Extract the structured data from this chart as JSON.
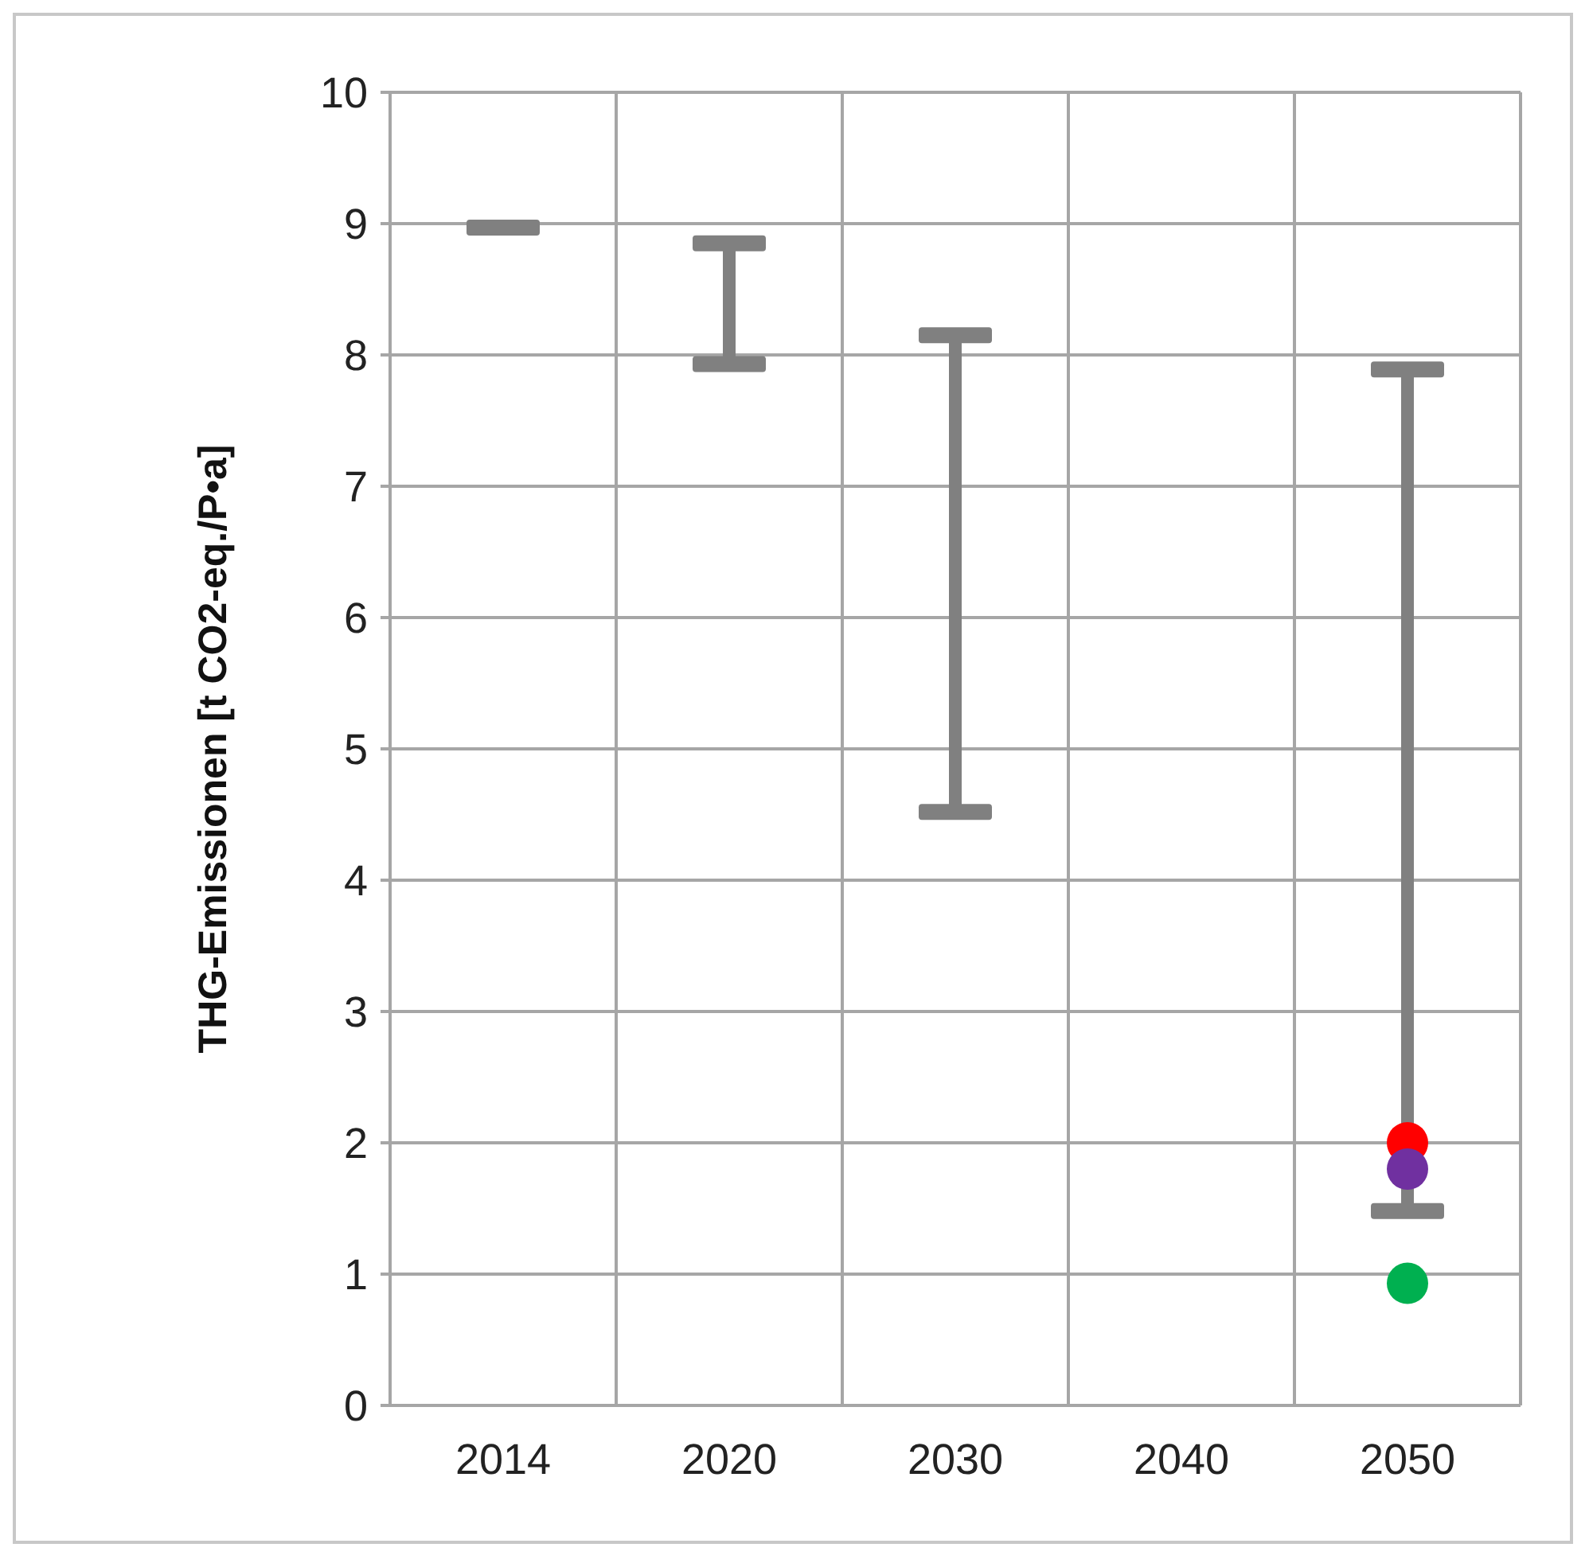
{
  "chart_data": {
    "type": "bar",
    "ylabel": "THG-Emissionen  [t CO2-eq./P•a]",
    "categories": [
      "2014",
      "2020",
      "2030",
      "2040",
      "2050"
    ],
    "series": [
      {
        "color": "#808080",
        "values": [
          0,
          0.92,
          3.63,
          null,
          6.41
        ],
        "base": [
          8.97,
          7.93,
          4.52,
          null,
          1.48
        ]
      },
      {
        "type": "scatter",
        "color": "#ff0000",
        "values": [
          null,
          null,
          null,
          null,
          2.0
        ]
      },
      {
        "type": "scatter",
        "color": "#7030a0",
        "values": [
          null,
          null,
          null,
          null,
          1.8
        ]
      },
      {
        "type": "scatter",
        "color": "#00b050",
        "values": [
          null,
          null,
          null,
          null,
          0.93
        ]
      }
    ],
    "ylim": [
      0,
      10
    ],
    "yticks": [
      0,
      1,
      2,
      3,
      4,
      5,
      6,
      7,
      8,
      9,
      10
    ],
    "grid": true,
    "legend": false,
    "marker": "circle"
  }
}
